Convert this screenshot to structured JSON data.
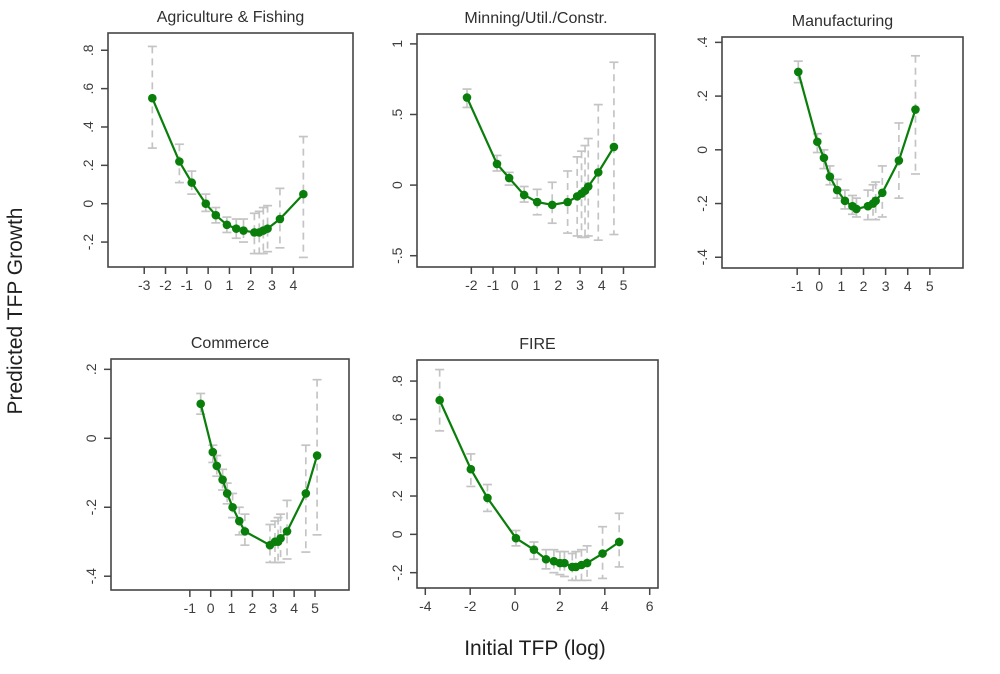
{
  "figure": {
    "ylabel": "Predicted TFP Growth",
    "xlabel": "Initial TFP (log)"
  },
  "colors": {
    "series": "#0a7e0a",
    "error_bar": "#c4c4c4",
    "box": "#454545",
    "tick_text": "#3d3d3d",
    "title_text": "#2f2f2f",
    "background": "#ffffff"
  },
  "chart_data": [
    {
      "id": "agriculture-fishing",
      "type": "line",
      "title": "Agriculture & Fishing",
      "xlabel": "",
      "ylabel": "",
      "grid": false,
      "legend": null,
      "error_bars": true,
      "xlim": [
        -4.7,
        6.8
      ],
      "ylim": [
        -0.33,
        0.89
      ],
      "x_ticks": {
        "values": [
          -3,
          -2,
          -1,
          0,
          1,
          2,
          3,
          4
        ],
        "labels": [
          "-3",
          "-2",
          "-1",
          "0",
          "1",
          "2",
          "3",
          "4"
        ]
      },
      "y_ticks": {
        "values": [
          -0.2,
          0,
          0.2,
          0.4,
          0.6,
          0.8
        ],
        "labels": [
          "-.2",
          "0",
          ".2",
          ".4",
          ".6",
          ".8"
        ]
      },
      "series": [
        {
          "name": "predicted-tfp-growth",
          "points": [
            {
              "x": -2.62,
              "y": 0.55,
              "lo": 0.29,
              "hi": 0.82
            },
            {
              "x": -1.35,
              "y": 0.22,
              "lo": 0.11,
              "hi": 0.31
            },
            {
              "x": -0.77,
              "y": 0.11,
              "lo": 0.05,
              "hi": 0.17
            },
            {
              "x": -0.11,
              "y": 0.0,
              "lo": -0.04,
              "hi": 0.05
            },
            {
              "x": 0.36,
              "y": -0.06,
              "lo": -0.1,
              "hi": -0.02
            },
            {
              "x": 0.88,
              "y": -0.11,
              "lo": -0.15,
              "hi": -0.07
            },
            {
              "x": 1.32,
              "y": -0.13,
              "lo": -0.18,
              "hi": -0.08
            },
            {
              "x": 1.66,
              "y": -0.14,
              "lo": -0.2,
              "hi": -0.08
            },
            {
              "x": 2.17,
              "y": -0.15,
              "lo": -0.26,
              "hi": -0.05
            },
            {
              "x": 2.4,
              "y": -0.15,
              "lo": -0.26,
              "hi": -0.04
            },
            {
              "x": 2.59,
              "y": -0.14,
              "lo": -0.26,
              "hi": -0.02
            },
            {
              "x": 2.79,
              "y": -0.13,
              "lo": -0.25,
              "hi": -0.01
            },
            {
              "x": 3.37,
              "y": -0.08,
              "lo": -0.23,
              "hi": 0.08
            },
            {
              "x": 4.47,
              "y": 0.05,
              "lo": -0.28,
              "hi": 0.35
            }
          ]
        }
      ]
    },
    {
      "id": "mining-util-constr",
      "type": "line",
      "title": "Minning/Util./Constr.",
      "xlabel": "",
      "ylabel": "",
      "grid": false,
      "legend": null,
      "error_bars": true,
      "xlim": [
        -4.5,
        6.45
      ],
      "ylim": [
        -0.58,
        1.07
      ],
      "x_ticks": {
        "values": [
          -2,
          -1,
          0,
          1,
          2,
          3,
          4,
          5
        ],
        "labels": [
          "-2",
          "-1",
          "0",
          "1",
          "2",
          "3",
          "4",
          "5"
        ]
      },
      "y_ticks": {
        "values": [
          -0.5,
          0,
          0.5,
          1
        ],
        "labels": [
          "-.5",
          "0",
          ".5",
          "1"
        ]
      },
      "series": [
        {
          "name": "predicted-tfp-growth",
          "points": [
            {
              "x": -2.2,
              "y": 0.62,
              "lo": 0.55,
              "hi": 0.68
            },
            {
              "x": -0.82,
              "y": 0.15,
              "lo": 0.1,
              "hi": 0.21
            },
            {
              "x": -0.26,
              "y": 0.05,
              "lo": 0.0,
              "hi": 0.09
            },
            {
              "x": 0.43,
              "y": -0.07,
              "lo": -0.12,
              "hi": -0.01
            },
            {
              "x": 1.03,
              "y": -0.12,
              "lo": -0.21,
              "hi": -0.03
            },
            {
              "x": 1.72,
              "y": -0.14,
              "lo": -0.27,
              "hi": 0.02
            },
            {
              "x": 2.43,
              "y": -0.12,
              "lo": -0.34,
              "hi": 0.1
            },
            {
              "x": 2.87,
              "y": -0.08,
              "lo": -0.36,
              "hi": 0.2
            },
            {
              "x": 3.07,
              "y": -0.06,
              "lo": -0.37,
              "hi": 0.24
            },
            {
              "x": 3.23,
              "y": -0.04,
              "lo": -0.37,
              "hi": 0.28
            },
            {
              "x": 3.38,
              "y": -0.01,
              "lo": -0.36,
              "hi": 0.33
            },
            {
              "x": 3.84,
              "y": 0.09,
              "lo": -0.39,
              "hi": 0.57
            },
            {
              "x": 4.56,
              "y": 0.27,
              "lo": -0.35,
              "hi": 0.87
            }
          ]
        }
      ]
    },
    {
      "id": "manufacturing",
      "type": "line",
      "title": "Manufacturing",
      "xlabel": "",
      "ylabel": "",
      "grid": false,
      "legend": null,
      "error_bars": true,
      "xlim": [
        -4.4,
        6.5
      ],
      "ylim": [
        -0.44,
        0.42
      ],
      "x_ticks": {
        "values": [
          -1,
          0,
          1,
          2,
          3,
          4,
          5
        ],
        "labels": [
          "-1",
          "0",
          "1",
          "2",
          "3",
          "4",
          "5"
        ]
      },
      "y_ticks": {
        "values": [
          -0.4,
          -0.2,
          0,
          0.2,
          0.4
        ],
        "labels": [
          "-.4",
          "-.2",
          "0",
          ".2",
          ".4"
        ]
      },
      "series": [
        {
          "name": "predicted-tfp-growth",
          "points": [
            {
              "x": -0.95,
              "y": 0.29,
              "lo": 0.25,
              "hi": 0.33
            },
            {
              "x": -0.09,
              "y": 0.03,
              "lo": -0.01,
              "hi": 0.06
            },
            {
              "x": 0.21,
              "y": -0.03,
              "lo": -0.07,
              "hi": 0.0
            },
            {
              "x": 0.48,
              "y": -0.1,
              "lo": -0.13,
              "hi": -0.06
            },
            {
              "x": 0.81,
              "y": -0.15,
              "lo": -0.18,
              "hi": -0.11
            },
            {
              "x": 1.16,
              "y": -0.19,
              "lo": -0.22,
              "hi": -0.15
            },
            {
              "x": 1.5,
              "y": -0.21,
              "lo": -0.24,
              "hi": -0.17
            },
            {
              "x": 1.68,
              "y": -0.22,
              "lo": -0.25,
              "hi": -0.18
            },
            {
              "x": 2.2,
              "y": -0.21,
              "lo": -0.26,
              "hi": -0.15
            },
            {
              "x": 2.43,
              "y": -0.2,
              "lo": -0.26,
              "hi": -0.13
            },
            {
              "x": 2.55,
              "y": -0.19,
              "lo": -0.26,
              "hi": -0.12
            },
            {
              "x": 2.85,
              "y": -0.16,
              "lo": -0.25,
              "hi": -0.06
            },
            {
              "x": 3.6,
              "y": -0.04,
              "lo": -0.18,
              "hi": 0.1
            },
            {
              "x": 4.35,
              "y": 0.15,
              "lo": -0.09,
              "hi": 0.35
            }
          ]
        }
      ]
    },
    {
      "id": "commerce",
      "type": "line",
      "title": "Commerce",
      "xlabel": "",
      "ylabel": "",
      "grid": false,
      "legend": null,
      "error_bars": true,
      "xlim": [
        -4.78,
        6.63
      ],
      "ylim": [
        -0.44,
        0.23
      ],
      "x_ticks": {
        "values": [
          -1,
          0,
          1,
          2,
          3,
          4,
          5
        ],
        "labels": [
          "-1",
          "0",
          "1",
          "2",
          "3",
          "4",
          "5"
        ]
      },
      "y_ticks": {
        "values": [
          -0.4,
          -0.2,
          0,
          0.2
        ],
        "labels": [
          "-.4",
          "-.2",
          "0",
          ".2"
        ]
      },
      "series": [
        {
          "name": "predicted-tfp-growth",
          "points": [
            {
              "x": -0.48,
              "y": 0.1,
              "lo": 0.07,
              "hi": 0.13
            },
            {
              "x": 0.1,
              "y": -0.04,
              "lo": -0.07,
              "hi": -0.02
            },
            {
              "x": 0.29,
              "y": -0.08,
              "lo": -0.11,
              "hi": -0.05
            },
            {
              "x": 0.57,
              "y": -0.12,
              "lo": -0.15,
              "hi": -0.09
            },
            {
              "x": 0.79,
              "y": -0.16,
              "lo": -0.19,
              "hi": -0.13
            },
            {
              "x": 1.05,
              "y": -0.2,
              "lo": -0.23,
              "hi": -0.16
            },
            {
              "x": 1.37,
              "y": -0.24,
              "lo": -0.28,
              "hi": -0.2
            },
            {
              "x": 1.64,
              "y": -0.27,
              "lo": -0.31,
              "hi": -0.22
            },
            {
              "x": 2.84,
              "y": -0.31,
              "lo": -0.36,
              "hi": -0.25
            },
            {
              "x": 3.08,
              "y": -0.3,
              "lo": -0.36,
              "hi": -0.24
            },
            {
              "x": 3.23,
              "y": -0.3,
              "lo": -0.36,
              "hi": -0.23
            },
            {
              "x": 3.35,
              "y": -0.29,
              "lo": -0.36,
              "hi": -0.22
            },
            {
              "x": 3.66,
              "y": -0.27,
              "lo": -0.35,
              "hi": -0.18
            },
            {
              "x": 4.56,
              "y": -0.16,
              "lo": -0.33,
              "hi": -0.02
            },
            {
              "x": 5.1,
              "y": -0.05,
              "lo": -0.28,
              "hi": 0.17
            }
          ]
        }
      ]
    },
    {
      "id": "fire",
      "type": "line",
      "title": "FIRE",
      "xlabel": "",
      "ylabel": "",
      "grid": false,
      "legend": null,
      "error_bars": true,
      "xlim": [
        -4.37,
        6.37
      ],
      "ylim": [
        -0.28,
        0.91
      ],
      "x_ticks": {
        "values": [
          -4,
          -2,
          0,
          2,
          4,
          6
        ],
        "labels": [
          "-4",
          "-2",
          "0",
          "2",
          "4",
          "6"
        ]
      },
      "y_ticks": {
        "values": [
          -0.2,
          0,
          0.2,
          0.4,
          0.6,
          0.8
        ],
        "labels": [
          "-.2",
          "0",
          ".2",
          ".4",
          ".6",
          ".8"
        ]
      },
      "series": [
        {
          "name": "predicted-tfp-growth",
          "points": [
            {
              "x": -3.36,
              "y": 0.7,
              "lo": 0.54,
              "hi": 0.86
            },
            {
              "x": -1.97,
              "y": 0.34,
              "lo": 0.25,
              "hi": 0.42
            },
            {
              "x": -1.23,
              "y": 0.19,
              "lo": 0.12,
              "hi": 0.26
            },
            {
              "x": 0.04,
              "y": -0.02,
              "lo": -0.06,
              "hi": 0.02
            },
            {
              "x": 0.84,
              "y": -0.08,
              "lo": -0.13,
              "hi": -0.04
            },
            {
              "x": 1.38,
              "y": -0.13,
              "lo": -0.18,
              "hi": -0.08
            },
            {
              "x": 1.73,
              "y": -0.14,
              "lo": -0.2,
              "hi": -0.08
            },
            {
              "x": 2.0,
              "y": -0.15,
              "lo": -0.21,
              "hi": -0.09
            },
            {
              "x": 2.2,
              "y": -0.15,
              "lo": -0.22,
              "hi": -0.09
            },
            {
              "x": 2.55,
              "y": -0.17,
              "lo": -0.24,
              "hi": -0.1
            },
            {
              "x": 2.71,
              "y": -0.17,
              "lo": -0.24,
              "hi": -0.09
            },
            {
              "x": 2.96,
              "y": -0.16,
              "lo": -0.24,
              "hi": -0.08
            },
            {
              "x": 3.21,
              "y": -0.15,
              "lo": -0.24,
              "hi": -0.06
            },
            {
              "x": 3.9,
              "y": -0.1,
              "lo": -0.23,
              "hi": 0.04
            },
            {
              "x": 4.64,
              "y": -0.04,
              "lo": -0.17,
              "hi": 0.11
            }
          ]
        }
      ]
    }
  ]
}
